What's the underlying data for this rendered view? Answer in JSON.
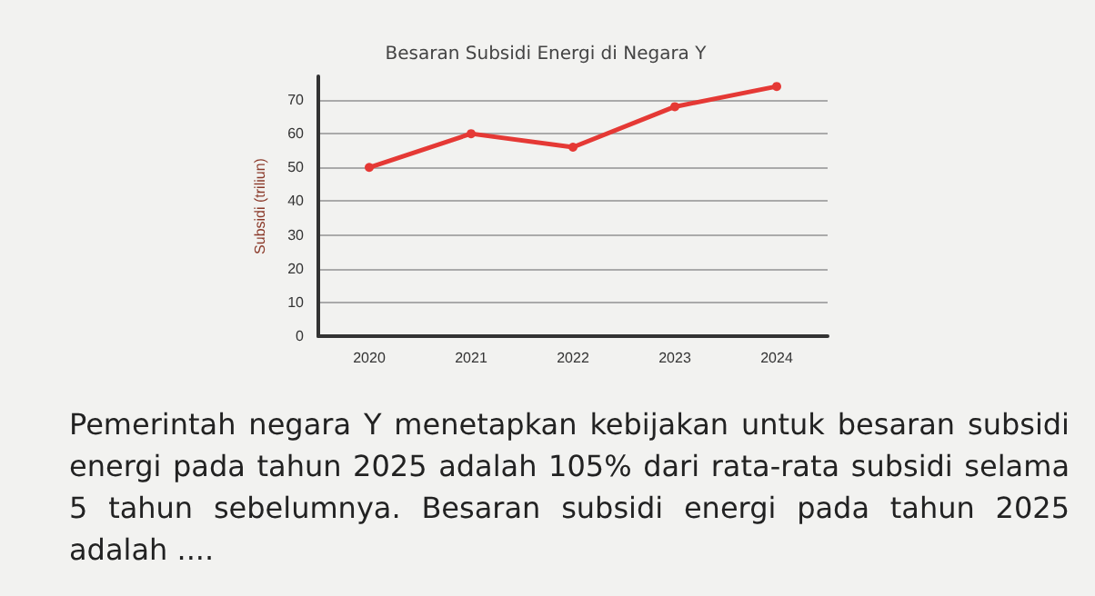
{
  "chart_data": {
    "type": "line",
    "title": "Besaran Subsidi Energi di Negara Y",
    "ylabel": "Subsidi (triliun)",
    "categories": [
      "2020",
      "2021",
      "2022",
      "2023",
      "2024"
    ],
    "series": [
      {
        "color": "#e53935",
        "values": [
          50,
          60,
          56,
          68,
          74
        ]
      }
    ],
    "ylim": [
      0,
      77
    ],
    "yticks": [
      0,
      10,
      20,
      30,
      40,
      50,
      60,
      70
    ],
    "grid": "y",
    "marker": "circle",
    "line_style": "solid",
    "annotations": [
      "Pemerintah negara Y menetapkan kebijakan untuk besaran subsidi energi pada tahun 2025 adalah 105% dari rata-rata subsidi selama 5 tahun sebelumnya. Besaran subsidi energi pada tahun 2025 adalah ...."
    ]
  }
}
